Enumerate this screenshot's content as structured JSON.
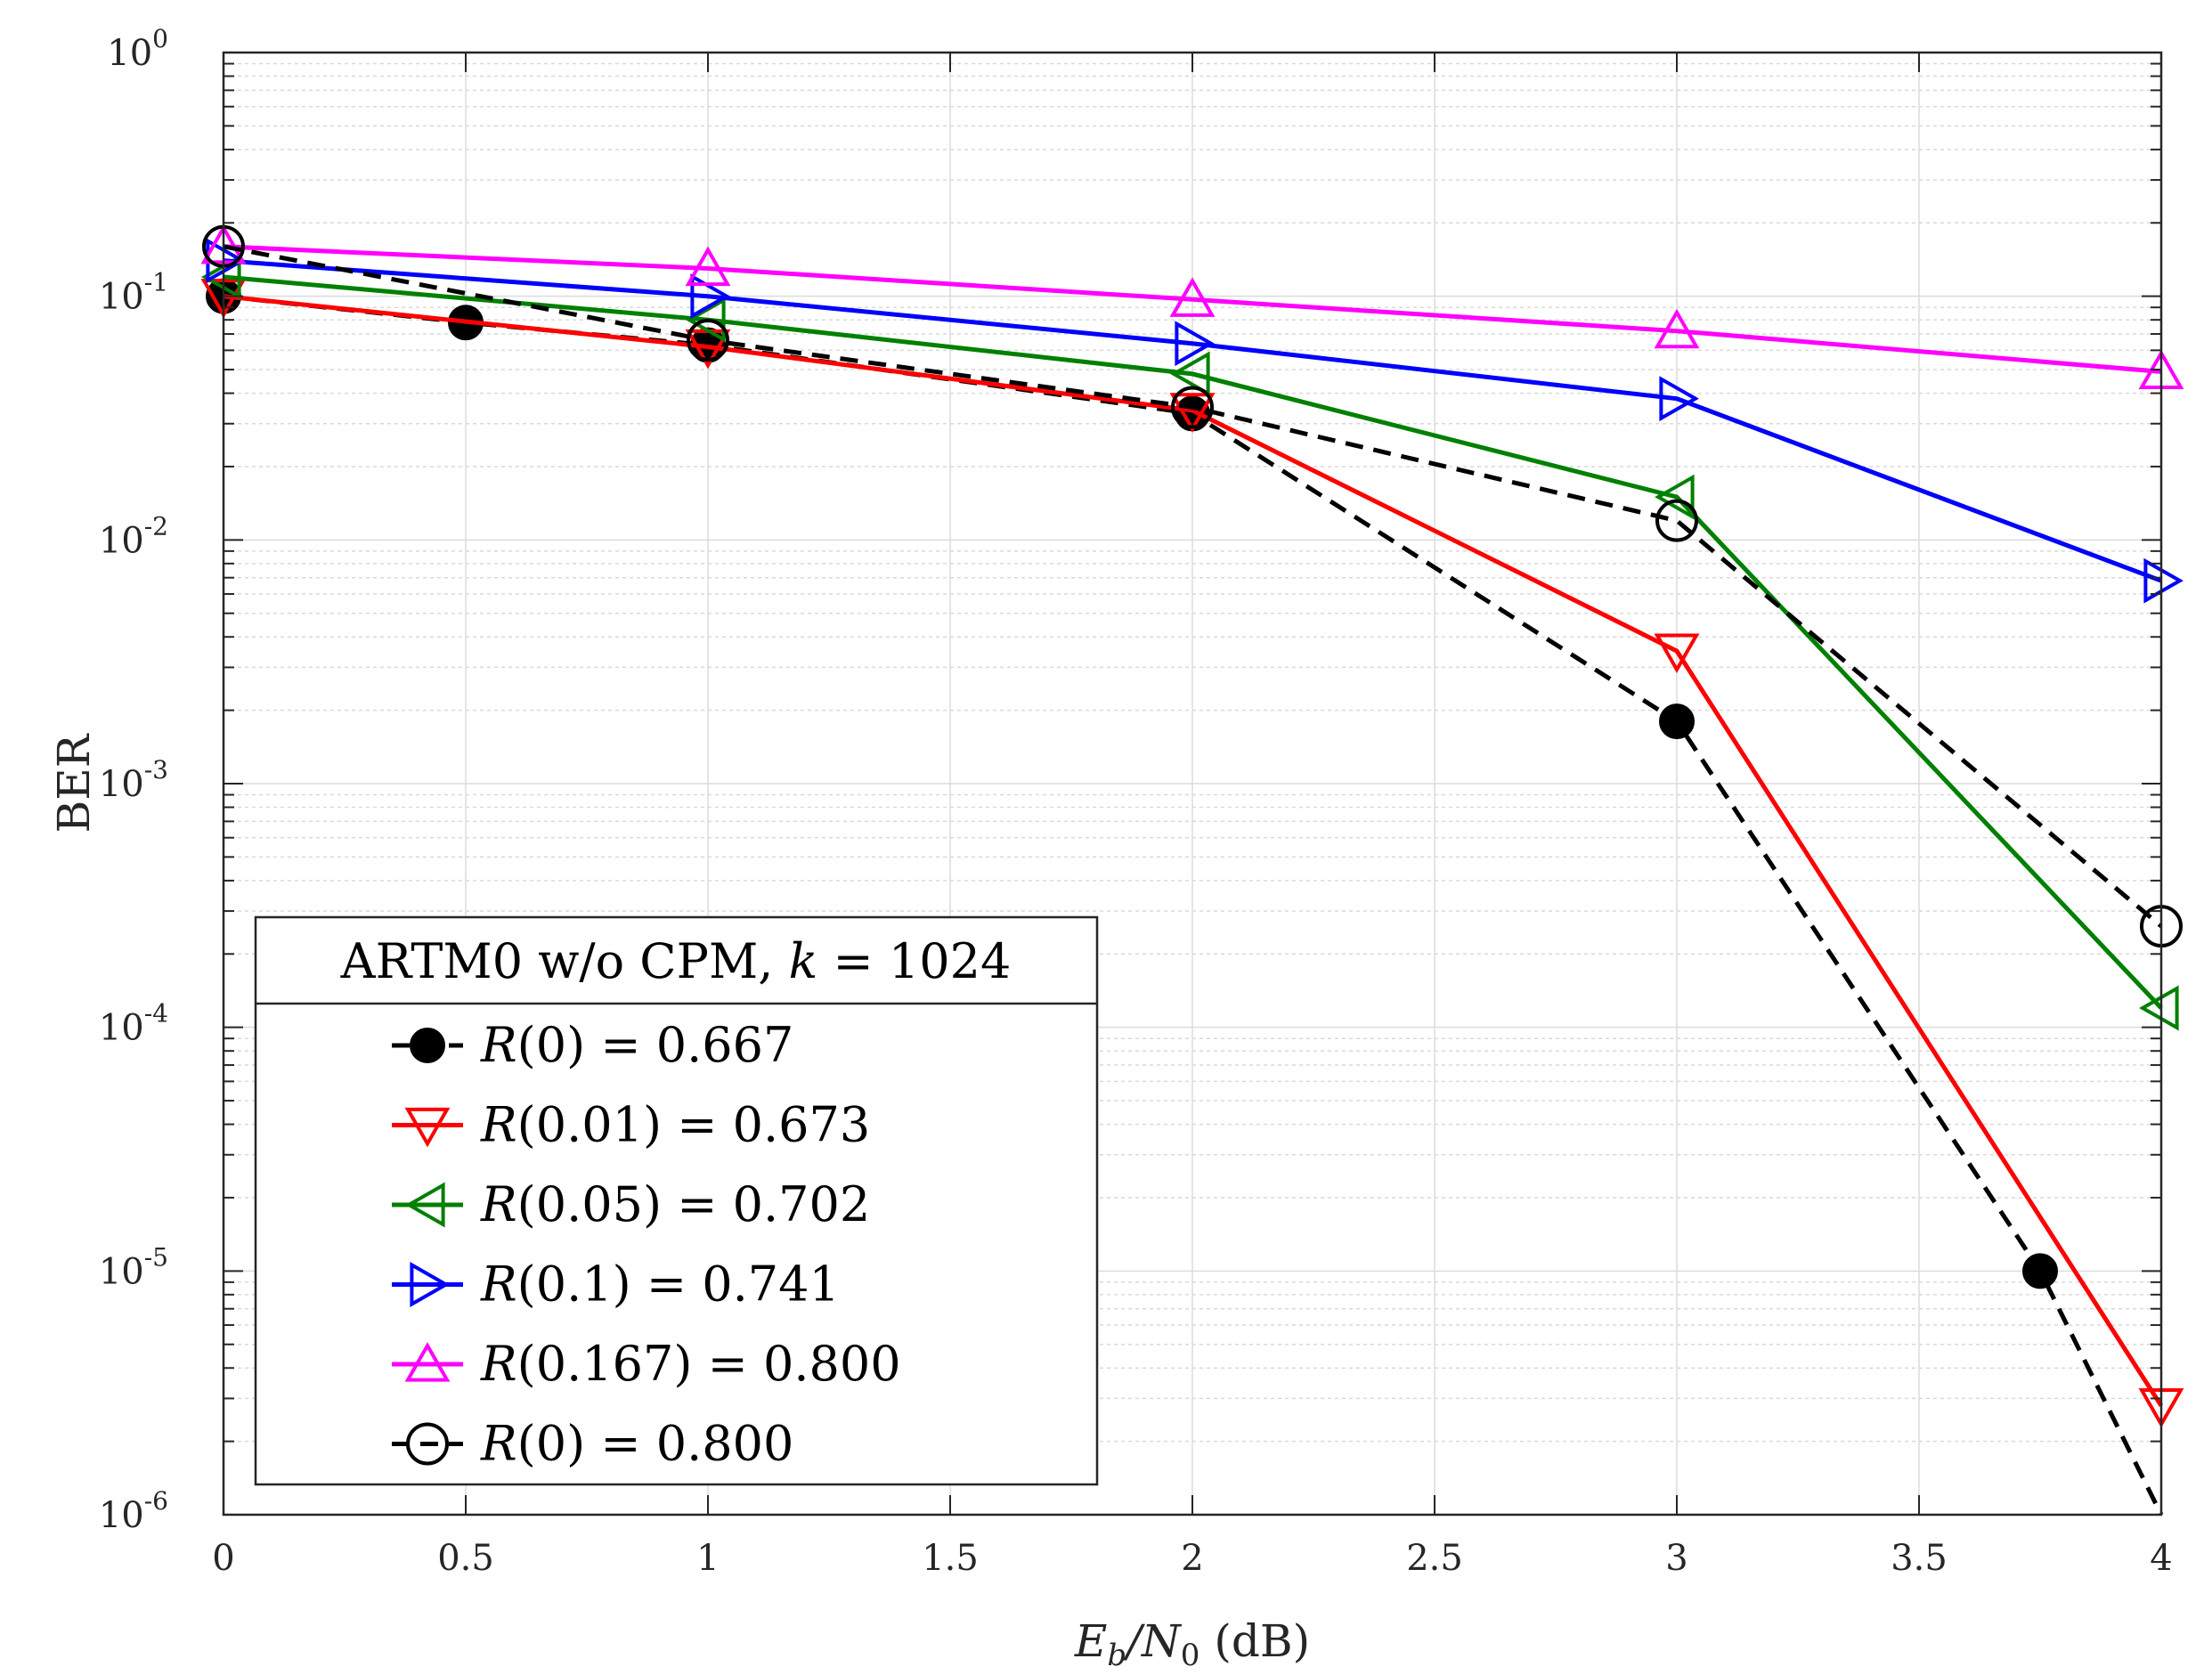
{
  "chart_data": {
    "type": "line",
    "xlabel": "E_b/N_0 (dB)",
    "xlabel_parts": {
      "main": "E",
      "sub1": "b",
      "slash": "/N",
      "sub2": "0",
      "unit": " (dB)"
    },
    "ylabel": "BER",
    "yscale": "log",
    "xlim": [
      0,
      4
    ],
    "ylim": [
      1e-06,
      1
    ],
    "grid": true,
    "x_ticks": [
      0,
      0.5,
      1,
      1.5,
      2,
      2.5,
      3,
      3.5,
      4
    ],
    "x_tick_labels": [
      "0",
      "0.5",
      "1",
      "1.5",
      "2",
      "2.5",
      "3",
      "3.5",
      "4"
    ],
    "y_ticks": [
      {
        "value": 1,
        "exp": "0"
      },
      {
        "value": 0.1,
        "exp": "-1"
      },
      {
        "value": 0.01,
        "exp": "-2"
      },
      {
        "value": 0.001,
        "exp": "-3"
      },
      {
        "value": 0.0001,
        "exp": "-4"
      },
      {
        "value": 1e-05,
        "exp": "-5"
      },
      {
        "value": 1e-06,
        "exp": "-6"
      }
    ],
    "y_tick_base": "10",
    "legend": {
      "title": "ARTM0 w/o CPM, k = 1024",
      "title_parts": {
        "prefix": "ARTM0 w/o CPM, ",
        "var": "k",
        "suffix": " = 1024"
      },
      "location": "bottom-left"
    },
    "series": [
      {
        "name": "R(0) = 0.667",
        "func": "R",
        "arg": "(0)",
        "rate": " = 0.667",
        "color": "#000000",
        "dash": true,
        "marker": "filled-circle",
        "x": [
          0,
          0.5,
          1,
          2,
          3,
          3.75,
          4
        ],
        "y": [
          0.1,
          0.078,
          0.063,
          0.033,
          0.0018,
          1e-05,
          1e-06
        ],
        "marker_x": [
          0,
          0.5,
          1,
          2,
          3,
          3.75
        ]
      },
      {
        "name": "R(0.01) = 0.673",
        "func": "R",
        "arg": "(0.01)",
        "rate": " = 0.673",
        "color": "#ff0000",
        "dash": false,
        "marker": "triangle-down",
        "x": [
          0,
          1,
          2,
          3,
          4
        ],
        "y": [
          0.1,
          0.062,
          0.034,
          0.0035,
          2.8e-06
        ]
      },
      {
        "name": "R(0.05) = 0.702",
        "func": "R",
        "arg": "(0.05)",
        "rate": " = 0.702",
        "color": "#008000",
        "dash": false,
        "marker": "triangle-left",
        "x": [
          0,
          1,
          2,
          3,
          4
        ],
        "y": [
          0.12,
          0.08,
          0.048,
          0.015,
          0.00012
        ]
      },
      {
        "name": "R(0.1) = 0.741",
        "func": "R",
        "arg": "(0.1)",
        "rate": " = 0.741",
        "color": "#0000ff",
        "dash": false,
        "marker": "triangle-right",
        "x": [
          0,
          1,
          2,
          3,
          4
        ],
        "y": [
          0.14,
          0.1,
          0.064,
          0.038,
          0.0068
        ]
      },
      {
        "name": "R(0.167) = 0.800",
        "func": "R",
        "arg": "(0.167)",
        "rate": " = 0.800",
        "color": "#ff00ff",
        "dash": false,
        "marker": "triangle-up",
        "x": [
          0,
          1,
          2,
          3,
          4
        ],
        "y": [
          0.16,
          0.13,
          0.097,
          0.072,
          0.049
        ]
      },
      {
        "name": "R(0) = 0.800",
        "func": "R",
        "arg": "(0)",
        "rate": " = 0.800",
        "color": "#000000",
        "dash": true,
        "marker": "open-circle",
        "x": [
          0,
          1,
          2,
          3,
          4
        ],
        "y": [
          0.16,
          0.066,
          0.035,
          0.012,
          0.00026
        ]
      }
    ]
  }
}
